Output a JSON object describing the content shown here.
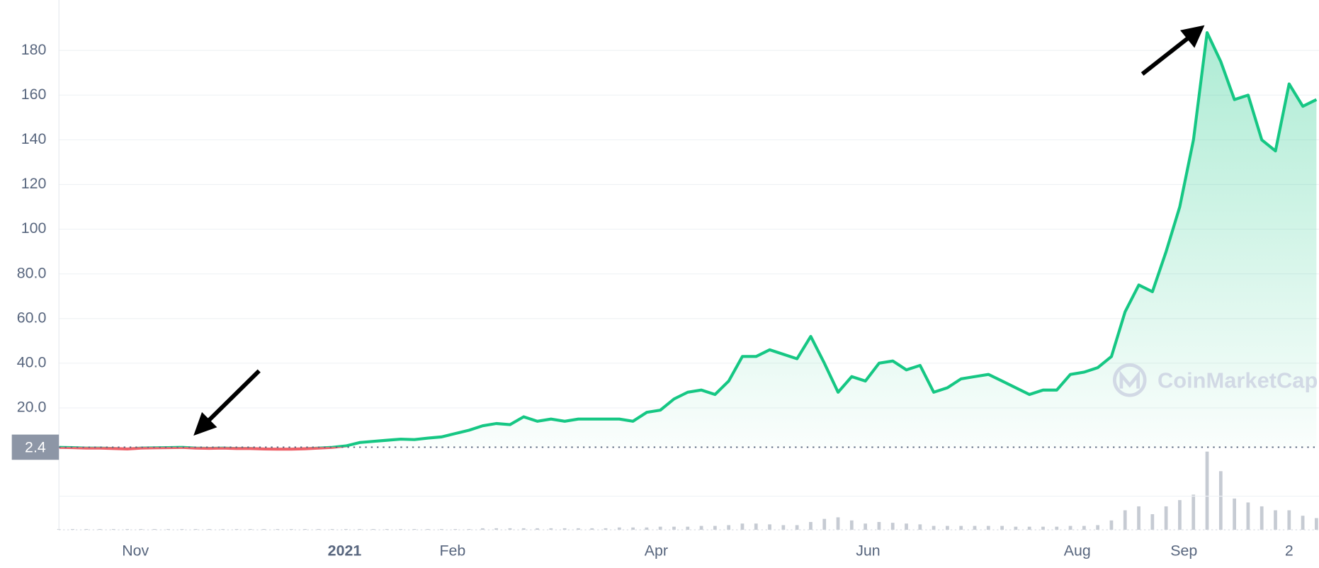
{
  "chart_data": {
    "type": "line",
    "series": [
      {
        "color": "#16c784",
        "below_color": "#ea3943",
        "values": [
          2.3,
          2.2,
          2.0,
          2.0,
          1.8,
          1.6,
          2.0,
          2.1,
          2.2,
          2.3,
          2.0,
          1.9,
          2.0,
          1.8,
          1.8,
          1.6,
          1.5,
          1.5,
          1.7,
          2.0,
          2.3,
          3,
          4.5,
          5,
          5.5,
          6,
          5.8,
          6.5,
          7,
          8.5,
          10,
          12,
          13,
          12.5,
          16,
          14,
          15,
          14,
          15,
          15,
          15,
          15,
          14,
          18,
          19,
          24,
          27,
          28,
          26,
          32,
          43,
          43,
          46,
          44,
          42,
          52,
          40,
          27,
          34,
          32,
          40,
          41,
          37,
          39,
          27,
          29,
          33,
          34,
          35,
          32,
          29,
          26,
          28,
          28,
          35,
          36,
          38,
          43,
          63,
          75,
          72,
          90,
          110,
          140,
          188,
          175,
          158,
          160,
          140,
          135,
          165,
          155,
          158
        ]
      }
    ],
    "volume": {
      "color": "#c6cbd3",
      "ylim": [
        0,
        100
      ],
      "values": [
        1,
        1,
        1,
        1,
        1,
        1,
        1,
        1,
        1,
        1,
        1,
        1,
        1,
        1,
        1,
        1,
        1,
        1,
        1,
        1,
        1,
        1,
        1,
        1,
        1,
        1,
        1,
        1,
        1,
        1,
        1,
        2,
        2,
        2,
        2,
        2,
        2,
        2,
        2,
        2,
        2,
        3,
        3,
        3,
        4,
        4,
        4,
        5,
        5,
        6,
        8,
        8,
        7,
        6,
        6,
        10,
        14,
        16,
        12,
        8,
        10,
        9,
        8,
        7,
        5,
        5,
        5,
        5,
        5,
        5,
        4,
        4,
        4,
        4,
        5,
        5,
        6,
        12,
        25,
        30,
        20,
        30,
        38,
        45,
        100,
        75,
        40,
        35,
        30,
        25,
        25,
        18,
        15
      ]
    },
    "reference_value": 2.4,
    "xlim": [
      0,
      92
    ],
    "xticks": [
      {
        "value": 5.6,
        "label": "Nov"
      },
      {
        "value": 20.9,
        "label": "2021"
      },
      {
        "value": 28.8,
        "label": "Feb"
      },
      {
        "value": 43.7,
        "label": "Apr"
      },
      {
        "value": 59.2,
        "label": "Jun"
      },
      {
        "value": 74.5,
        "label": "Aug"
      },
      {
        "value": 82.3,
        "label": "Sep"
      },
      {
        "value": 90,
        "label": "2"
      }
    ],
    "ylim": [
      0,
      200
    ],
    "yticks": [
      {
        "value": 20,
        "label": "20.0"
      },
      {
        "value": 40,
        "label": "40.0"
      },
      {
        "value": 60,
        "label": "60.0"
      },
      {
        "value": 80,
        "label": "80.0"
      },
      100,
      120,
      140,
      160,
      180
    ],
    "grid": true,
    "watermark": "CoinMarketCap"
  }
}
